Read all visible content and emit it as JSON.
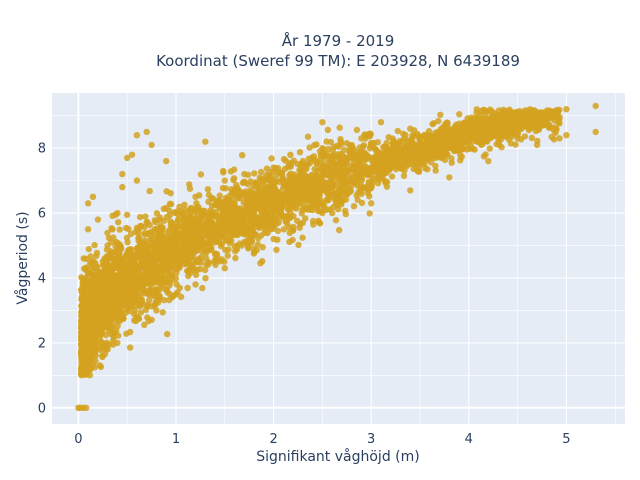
{
  "chart_data": {
    "type": "scatter",
    "title_line1": "År 1979 - 2019",
    "title_line2": "Koordinat (Sweref 99 TM): E 203928, N 6439189",
    "xlabel": "Signifikant våghöjd (m)",
    "ylabel": "Vågperiod (s)",
    "xlim": [
      -0.27,
      5.6
    ],
    "ylim": [
      -0.5,
      9.7
    ],
    "xticks": [
      0,
      1,
      2,
      3,
      4,
      5
    ],
    "yticks": [
      0,
      2,
      4,
      6,
      8
    ],
    "xtick_labels": [
      "0",
      "1",
      "2",
      "3",
      "4",
      "5"
    ],
    "ytick_labels": [
      "0",
      "2",
      "4",
      "6",
      "8"
    ],
    "grid": true,
    "marker_color": "#d4a21f",
    "plot_bg": "#e5ecf6",
    "series": [
      {
        "points": [
          [
            0.0,
            0.0
          ],
          [
            0.02,
            0.0
          ],
          [
            0.05,
            0.0
          ],
          [
            0.08,
            0.0
          ],
          [
            0.05,
            1.5
          ],
          [
            0.08,
            1.2
          ],
          [
            0.1,
            2.0
          ],
          [
            0.12,
            2.5
          ],
          [
            0.15,
            3.0
          ],
          [
            0.1,
            3.4
          ],
          [
            0.2,
            3.8
          ],
          [
            0.25,
            4.5
          ],
          [
            0.3,
            5.0
          ],
          [
            0.35,
            5.5
          ],
          [
            0.4,
            6.0
          ],
          [
            0.45,
            6.8
          ],
          [
            0.5,
            7.7
          ],
          [
            0.55,
            7.8
          ],
          [
            0.6,
            8.4
          ],
          [
            0.7,
            8.5
          ],
          [
            0.75,
            8.1
          ],
          [
            0.45,
            7.2
          ],
          [
            0.1,
            6.3
          ],
          [
            0.15,
            6.5
          ],
          [
            0.2,
            5.8
          ],
          [
            0.1,
            5.5
          ],
          [
            0.3,
            2.5
          ],
          [
            0.4,
            3.0
          ],
          [
            0.6,
            3.5
          ],
          [
            0.8,
            4.0
          ],
          [
            0.9,
            4.5
          ],
          [
            1.0,
            4.8
          ],
          [
            1.2,
            5.2
          ],
          [
            1.4,
            5.5
          ],
          [
            1.6,
            5.8
          ],
          [
            1.8,
            6.0
          ],
          [
            2.0,
            6.3
          ],
          [
            2.2,
            6.5
          ],
          [
            2.5,
            6.8
          ],
          [
            2.8,
            7.0
          ],
          [
            3.0,
            7.3
          ],
          [
            3.2,
            7.5
          ],
          [
            3.5,
            7.7
          ],
          [
            3.8,
            8.0
          ],
          [
            4.0,
            8.2
          ],
          [
            4.2,
            8.3
          ],
          [
            4.4,
            8.5
          ],
          [
            4.6,
            8.7
          ],
          [
            4.8,
            8.8
          ],
          [
            5.0,
            9.2
          ],
          [
            5.3,
            9.3
          ],
          [
            5.3,
            8.5
          ],
          [
            5.0,
            8.4
          ],
          [
            4.7,
            8.1
          ],
          [
            4.5,
            8.3
          ],
          [
            0.3,
            1.8
          ],
          [
            0.4,
            2.0
          ],
          [
            0.6,
            2.8
          ],
          [
            0.8,
            3.0
          ],
          [
            1.0,
            3.5
          ],
          [
            1.2,
            3.8
          ],
          [
            1.5,
            4.3
          ],
          [
            1.8,
            4.8
          ],
          [
            2.0,
            5.2
          ],
          [
            2.3,
            5.7
          ],
          [
            2.6,
            6.0
          ],
          [
            3.0,
            6.3
          ],
          [
            3.4,
            6.7
          ],
          [
            3.8,
            7.1
          ],
          [
            4.2,
            7.6
          ],
          [
            1.0,
            6.0
          ],
          [
            1.2,
            6.5
          ],
          [
            1.5,
            7.0
          ],
          [
            1.7,
            7.2
          ],
          [
            2.0,
            7.4
          ],
          [
            2.3,
            7.6
          ],
          [
            2.7,
            7.8
          ],
          [
            3.0,
            8.1
          ],
          [
            3.5,
            8.3
          ],
          [
            3.1,
            8.8
          ],
          [
            2.5,
            8.0
          ],
          [
            1.3,
            8.2
          ],
          [
            0.9,
            7.6
          ],
          [
            0.6,
            7.0
          ],
          [
            2.5,
            8.8
          ],
          [
            3.4,
            8.6
          ]
        ]
      }
    ]
  }
}
